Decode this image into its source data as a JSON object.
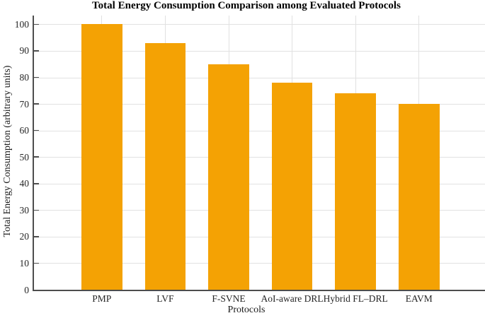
{
  "chart_data": {
    "type": "bar",
    "title": "Total Energy Consumption Comparison among Evaluated Protocols",
    "xlabel": "Protocols",
    "ylabel": "Total Energy Consumption (arbitrary units)",
    "categories": [
      "PMP",
      "LVF",
      "F-SVNE",
      "AoI-aware DRL",
      "Hybrid FL–DRL",
      "EAVM"
    ],
    "values": [
      100,
      93,
      85,
      78,
      74,
      70
    ],
    "y_ticks": [
      0,
      10,
      20,
      30,
      40,
      50,
      60,
      70,
      80,
      90,
      100
    ],
    "ylim": [
      0,
      103.3
    ],
    "grid": "on",
    "legend": "none",
    "colors": {
      "bar": "#f4a204",
      "grid_line": "#e1e1e1",
      "axis_line": "#4d4d4d",
      "text": "#1a1a1a",
      "background": "#ffffff"
    }
  }
}
